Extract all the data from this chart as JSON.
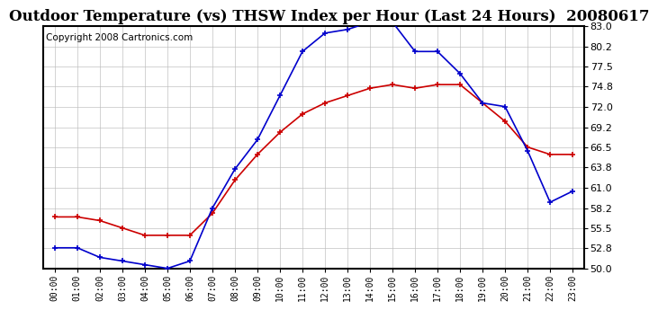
{
  "title": "Outdoor Temperature (vs) THSW Index per Hour (Last 24 Hours)  20080617",
  "copyright": "Copyright 2008 Cartronics.com",
  "hours": [
    0,
    1,
    2,
    3,
    4,
    5,
    6,
    7,
    8,
    9,
    10,
    11,
    12,
    13,
    14,
    15,
    16,
    17,
    18,
    19,
    20,
    21,
    22,
    23
  ],
  "temp": [
    57.0,
    57.0,
    56.5,
    55.5,
    54.5,
    54.5,
    54.5,
    57.5,
    62.0,
    65.5,
    68.5,
    71.0,
    72.5,
    73.5,
    74.5,
    75.0,
    74.5,
    75.0,
    75.0,
    72.5,
    70.0,
    66.5,
    65.5,
    65.5
  ],
  "thsw": [
    52.8,
    52.8,
    51.5,
    51.0,
    50.5,
    50.0,
    51.0,
    58.2,
    63.5,
    67.5,
    73.5,
    79.5,
    82.0,
    82.5,
    83.5,
    83.5,
    79.5,
    79.5,
    76.5,
    72.5,
    72.0,
    66.0,
    59.0,
    60.5
  ],
  "temp_color": "#cc0000",
  "thsw_color": "#0000cc",
  "bg_color": "#ffffff",
  "plot_bg": "#ffffff",
  "grid_color": "#bbbbbb",
  "ylim": [
    50.0,
    83.0
  ],
  "yticks": [
    50.0,
    52.8,
    55.5,
    58.2,
    61.0,
    63.8,
    66.5,
    69.2,
    72.0,
    74.8,
    77.5,
    80.2,
    83.0
  ],
  "title_fontsize": 12,
  "copyright_fontsize": 7.5,
  "marker_size": 4,
  "line_width": 1.2
}
